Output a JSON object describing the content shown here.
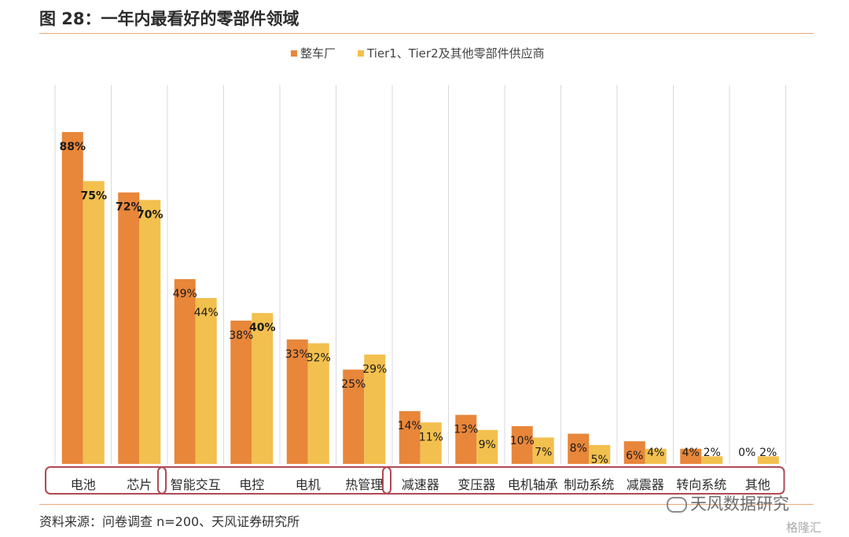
{
  "figure": {
    "title": "图 28：一年内最看好的零部件领域",
    "source": "资料来源：问卷调查 n=200、天风证券研究所",
    "watermark": "天风数据研究",
    "watermark2": "格隆汇"
  },
  "colors": {
    "series1": "#e8863a",
    "series2": "#f2c04e",
    "gridline": "#d9d9d9",
    "group_border": "#b04a55",
    "rule": "#e9a877"
  },
  "chart_data": {
    "type": "bar",
    "categories": [
      "电池",
      "芯片",
      "智能交互",
      "电控",
      "电机",
      "热管理",
      "减速器",
      "变压器",
      "电机轴承",
      "制动系统",
      "减震器",
      "转向系统",
      "其他"
    ],
    "series": [
      {
        "name": "整车厂",
        "values": [
          88,
          72,
          49,
          38,
          33,
          25,
          14,
          13,
          10,
          8,
          6,
          4,
          0
        ],
        "labels": [
          "88%",
          "72%",
          "49%",
          "38%",
          "33%",
          "25%",
          "14%",
          "13%",
          "10%",
          "8%",
          "6%",
          "4%",
          "0%"
        ]
      },
      {
        "name": "Tier1、Tier2及其他零部件供应商",
        "values": [
          75,
          70,
          44,
          40,
          32,
          29,
          11,
          9,
          7,
          5,
          4,
          2,
          2
        ],
        "labels": [
          "75%",
          "70%",
          "44%",
          "40%",
          "32%",
          "29%",
          "11%",
          "9%",
          "7%",
          "5%",
          "4%",
          "2%",
          "2%"
        ]
      }
    ],
    "ylim": [
      0,
      100
    ],
    "grid": "vertical",
    "legend_position": "top-center",
    "groups": [
      {
        "name": "group-1",
        "categories": [
          "电池",
          "芯片"
        ]
      },
      {
        "name": "group-2",
        "categories": [
          "智能交互",
          "电控",
          "电机",
          "热管理"
        ]
      },
      {
        "name": "group-3",
        "categories": [
          "减速器",
          "变压器",
          "电机轴承",
          "制动系统",
          "减震器",
          "转向系统",
          "其他"
        ]
      }
    ]
  }
}
